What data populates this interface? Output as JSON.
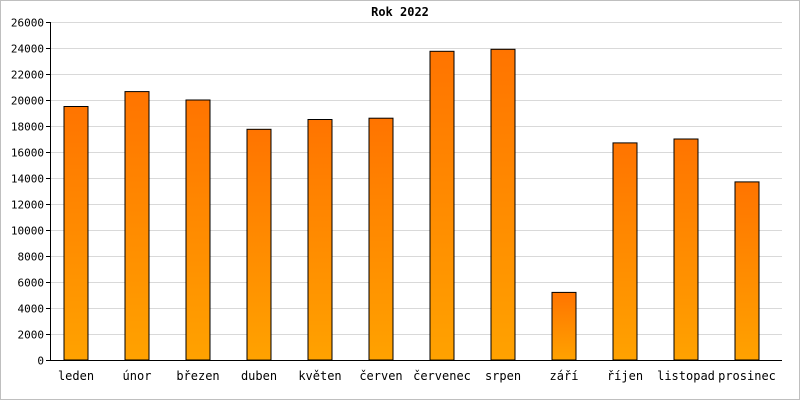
{
  "chart_data": {
    "type": "bar",
    "title": "Rok 2022",
    "xlabel": "",
    "ylabel": "",
    "categories": [
      "leden",
      "únor",
      "březen",
      "duben",
      "květen",
      "červen",
      "červenec",
      "srpen",
      "září",
      "říjen",
      "listopad",
      "prosinec"
    ],
    "values": [
      19500,
      20650,
      20000,
      17750,
      18500,
      18600,
      23750,
      23900,
      5200,
      16700,
      17000,
      13700
    ],
    "ylim": [
      0,
      26000
    ],
    "yticks": [
      0,
      2000,
      4000,
      6000,
      8000,
      10000,
      12000,
      14000,
      16000,
      18000,
      20000,
      22000,
      24000,
      26000
    ],
    "grid": true,
    "legend": "none",
    "colors": {
      "bar_top": "#ff7400",
      "bar_bottom": "#ffa200",
      "grid": "#d9d9d9"
    }
  }
}
